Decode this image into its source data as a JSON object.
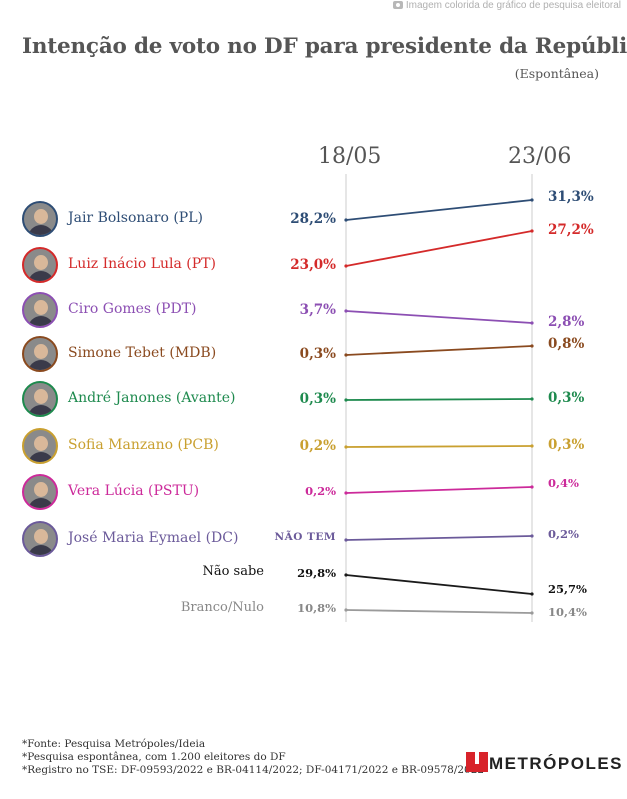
{
  "watermark": "Imagem colorida de gráfico de pesquisa eleitoral",
  "chart_data": {
    "type": "line",
    "title": "Intenção de voto no DF para presidente da República",
    "subtitle": "(Espontânea)",
    "x": [
      "18/05",
      "23/06"
    ],
    "ylim": [
      0,
      32
    ],
    "series": [
      {
        "name": "Jair Bolsonaro (PL)",
        "values": [
          28.2,
          31.3
        ],
        "labels": [
          "28,2%",
          "31,3%"
        ],
        "color": "#2e4d75"
      },
      {
        "name": "Luiz Inácio Lula (PT)",
        "values": [
          23.0,
          27.2
        ],
        "labels": [
          "23,0%",
          "27,2%"
        ],
        "color": "#d42a2a"
      },
      {
        "name": "Ciro Gomes (PDT)",
        "values": [
          3.7,
          2.8
        ],
        "labels": [
          "3,7%",
          "2,8%"
        ],
        "color": "#8c4fb3"
      },
      {
        "name": "Simone Tebet (MDB)",
        "values": [
          0.3,
          0.8
        ],
        "labels": [
          "0,3%",
          "0,8%"
        ],
        "color": "#8a4a1f"
      },
      {
        "name": "André Janones (Avante)",
        "values": [
          0.3,
          0.3
        ],
        "labels": [
          "0,3%",
          "0,3%"
        ],
        "color": "#1e8a4e"
      },
      {
        "name": "Sofia Manzano (PCB)",
        "values": [
          0.2,
          0.3
        ],
        "labels": [
          "0,2%",
          "0,3%"
        ],
        "color": "#c9a030"
      },
      {
        "name": "Vera Lúcia (PSTU)",
        "values": [
          0.2,
          0.4
        ],
        "labels": [
          "0,2%",
          "0,4%"
        ],
        "color": "#cc2a9a"
      },
      {
        "name": "José Maria Eymael (DC)",
        "values": [
          null,
          0.2
        ],
        "labels": [
          "NÃO TEM",
          "0,2%"
        ],
        "color": "#6b5a9a"
      },
      {
        "name": "Não sabe",
        "values": [
          29.8,
          25.7
        ],
        "labels": [
          "29,8%",
          "25,7%"
        ],
        "color": "#1a1a1a"
      },
      {
        "name": "Branco/Nulo",
        "values": [
          10.8,
          10.4
        ],
        "labels": [
          "10,8%",
          "10,4%"
        ],
        "color": "#9a9a9a"
      }
    ]
  },
  "footnotes": [
    "*Fonte: Pesquisa Metrópoles/Ideia",
    "*Pesquisa espontânea, com 1.200 eleitores do DF",
    "*Registro no TSE: DF-09593/2022 e BR-04114/2022; DF-04171/2022 e BR-09578/2022"
  ],
  "logo": "METRÓPOLES"
}
